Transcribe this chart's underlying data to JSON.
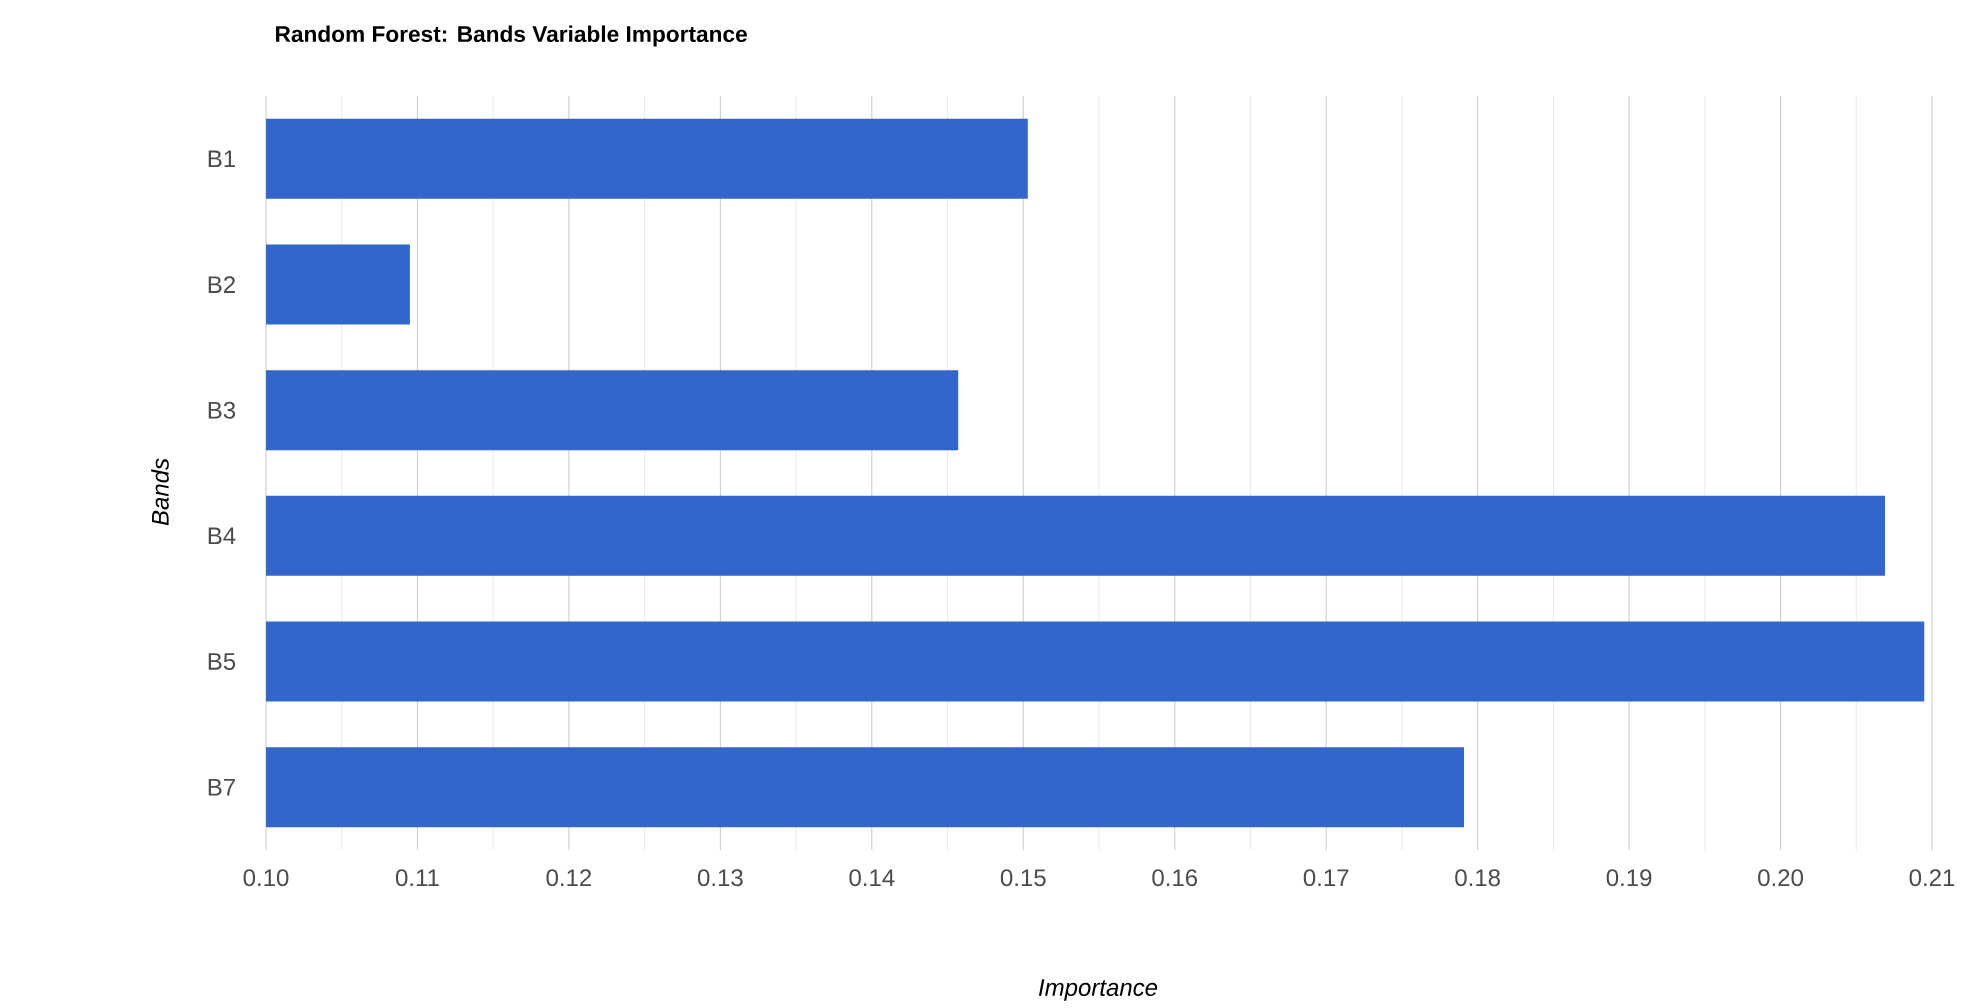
{
  "chart_data": {
    "type": "bar",
    "orientation": "horizontal",
    "title": "Random Forest: Bands Variable Importance",
    "xlabel": "Importance",
    "ylabel": "Bands",
    "categories": [
      "B1",
      "B2",
      "B3",
      "B4",
      "B5",
      "B7"
    ],
    "values": [
      0.1503,
      0.1095,
      0.1457,
      0.2069,
      0.2095,
      0.1791
    ],
    "color": "#3366cc",
    "xlim": [
      0.1,
      0.21
    ],
    "xticks": [
      {
        "value": 0.1,
        "label": "0.10"
      },
      {
        "value": 0.11,
        "label": "0.11"
      },
      {
        "value": 0.12,
        "label": "0.12"
      },
      {
        "value": 0.13,
        "label": "0.13"
      },
      {
        "value": 0.14,
        "label": "0.14"
      },
      {
        "value": 0.15,
        "label": "0.15"
      },
      {
        "value": 0.16,
        "label": "0.16"
      },
      {
        "value": 0.17,
        "label": "0.17"
      },
      {
        "value": 0.18,
        "label": "0.18"
      },
      {
        "value": 0.19,
        "label": "0.19"
      },
      {
        "value": 0.2,
        "label": "0.20"
      },
      {
        "value": 0.21,
        "label": "0.21"
      }
    ],
    "grid": "x"
  }
}
